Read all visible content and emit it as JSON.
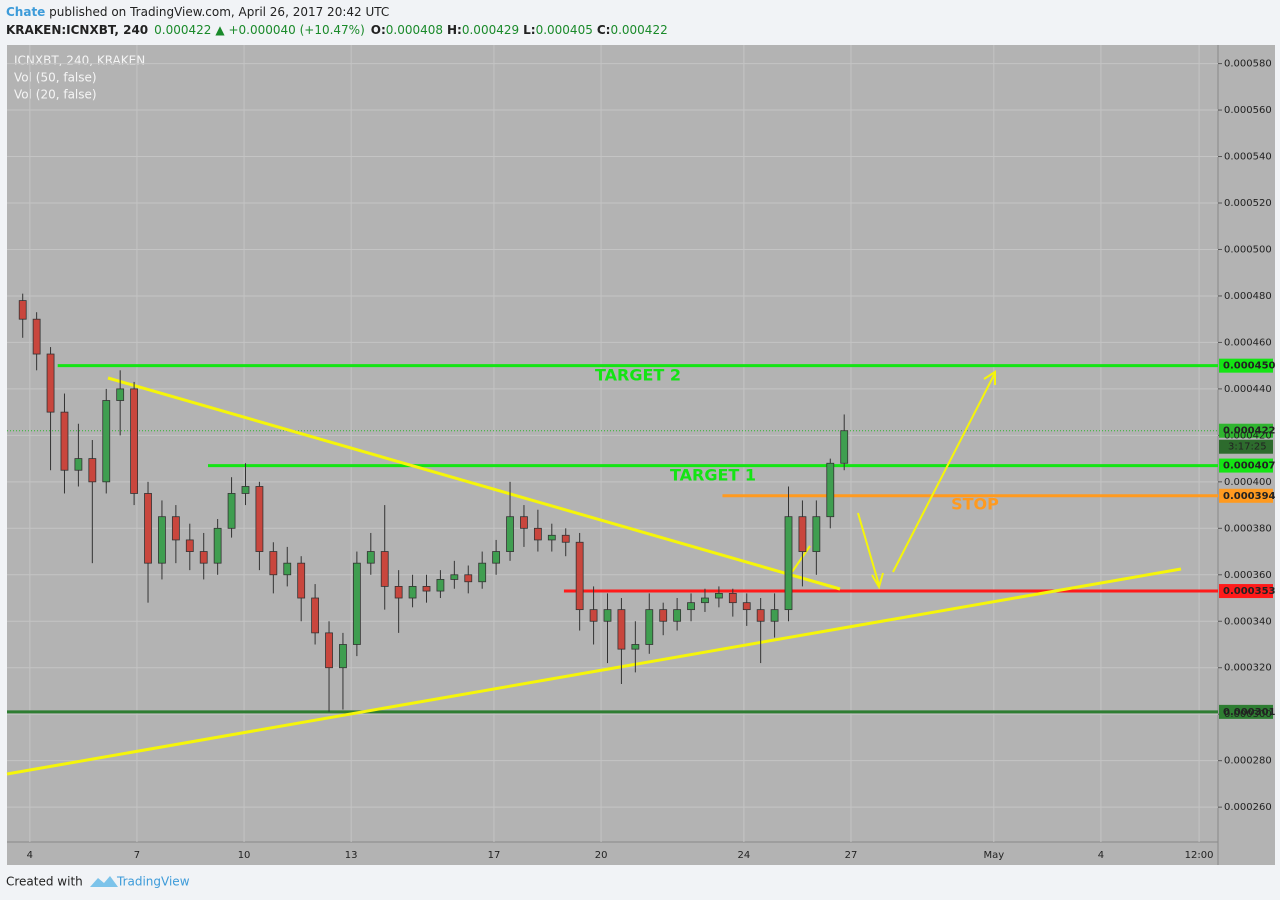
{
  "header": {
    "author": "Chate",
    "published": " published on TradingView.com, April 26, 2017 20:42 UTC",
    "symbol": "KRAKEN:ICNXBT, 240",
    "price": "0.000422",
    "change": "▲ +0.000040 (+10.47%)",
    "o_label": "O:",
    "o": "0.000408",
    "h_label": "H:",
    "h": "0.000429",
    "l_label": "L:",
    "l": "0.000405",
    "c_label": "C:",
    "c": "0.000422"
  },
  "legend": [
    "ICNXBT, 240, KRAKEN",
    "Vol (50, false)",
    "Vol (20, false)"
  ],
  "footer": {
    "created": "Created with",
    "brand": "TradingView"
  },
  "chart_data": {
    "type": "candlestick",
    "up_color": "#3f9e50",
    "down_color": "#c9463d",
    "xlim": [
      3.36,
      37.28
    ],
    "ylim": [
      0.000245,
      0.000588
    ],
    "xticks": [
      4,
      7,
      10,
      13,
      17,
      20,
      24,
      27,
      {
        "value": 31,
        "label": "May"
      },
      {
        "value": 34,
        "label": "4"
      },
      {
        "value": 36.75,
        "label": "12:00"
      }
    ],
    "yticks": [
      {
        "value": 0.00026,
        "label": "0.000260"
      },
      {
        "value": 0.00028,
        "label": "0.000280"
      },
      {
        "value": 0.0003,
        "label": "0.000300"
      },
      {
        "value": 0.00032,
        "label": "0.000320"
      },
      {
        "value": 0.00034,
        "label": "0.000340"
      },
      {
        "value": 0.00036,
        "label": "0.000360"
      },
      {
        "value": 0.00038,
        "label": "0.000380"
      },
      {
        "value": 0.0004,
        "label": "0.000400"
      },
      {
        "value": 0.00042,
        "label": "0.000420"
      },
      {
        "value": 0.00044,
        "label": "0.000440"
      },
      {
        "value": 0.00046,
        "label": "0.000460"
      },
      {
        "value": 0.00048,
        "label": "0.000480"
      },
      {
        "value": 0.0005,
        "label": "0.000500"
      },
      {
        "value": 0.00052,
        "label": "0.000520"
      },
      {
        "value": 0.00054,
        "label": "0.000540"
      },
      {
        "value": 0.00056,
        "label": "0.000560"
      },
      {
        "value": 0.00058,
        "label": "0.000580"
      }
    ],
    "grid": true,
    "x": [
      3.8,
      4.19,
      4.58,
      4.97,
      5.36,
      5.75,
      6.14,
      6.53,
      6.92,
      7.31,
      7.7,
      8.09,
      8.48,
      8.87,
      9.26,
      9.65,
      10.04,
      10.43,
      10.82,
      11.21,
      11.6,
      11.99,
      12.38,
      12.77,
      13.16,
      13.55,
      13.94,
      14.33,
      14.72,
      15.11,
      15.5,
      15.89,
      16.28,
      16.67,
      17.06,
      17.45,
      17.84,
      18.23,
      18.62,
      19.01,
      19.4,
      19.79,
      20.18,
      20.57,
      20.96,
      21.35,
      21.74,
      22.13,
      22.52,
      22.91,
      23.3,
      23.69,
      24.08,
      24.47,
      24.86,
      25.25,
      25.64,
      26.03,
      26.42,
      26.81
    ],
    "open": [
      0.000478,
      0.00047,
      0.000455,
      0.00043,
      0.000405,
      0.00041,
      0.0004,
      0.000435,
      0.00044,
      0.000395,
      0.000365,
      0.000385,
      0.000375,
      0.00037,
      0.000365,
      0.00038,
      0.000395,
      0.000398,
      0.00037,
      0.00036,
      0.000365,
      0.00035,
      0.000335,
      0.00032,
      0.00033,
      0.000365,
      0.00037,
      0.000355,
      0.00035,
      0.000355,
      0.000353,
      0.000358,
      0.00036,
      0.000357,
      0.000365,
      0.00037,
      0.000385,
      0.00038,
      0.000375,
      0.000377,
      0.000374,
      0.000345,
      0.00034,
      0.000345,
      0.000328,
      0.00033,
      0.000345,
      0.00034,
      0.000345,
      0.000348,
      0.00035,
      0.000352,
      0.000348,
      0.000345,
      0.00034,
      0.000345,
      0.000385,
      0.00037,
      0.000385,
      0.000408
    ],
    "high": [
      0.000481,
      0.000473,
      0.000458,
      0.000438,
      0.000425,
      0.000418,
      0.00044,
      0.000448,
      0.000443,
      0.0004,
      0.000392,
      0.00039,
      0.000382,
      0.000378,
      0.000384,
      0.000402,
      0.000408,
      0.0004,
      0.000374,
      0.000372,
      0.000368,
      0.000356,
      0.00034,
      0.000335,
      0.00037,
      0.000378,
      0.00039,
      0.000362,
      0.00036,
      0.00036,
      0.000362,
      0.000366,
      0.000364,
      0.00037,
      0.000375,
      0.0004,
      0.00039,
      0.000388,
      0.000382,
      0.00038,
      0.000378,
      0.000355,
      0.000352,
      0.00035,
      0.00034,
      0.000352,
      0.000348,
      0.00035,
      0.000352,
      0.000354,
      0.000355,
      0.000354,
      0.000352,
      0.00035,
      0.000352,
      0.000398,
      0.000392,
      0.000392,
      0.00041,
      0.000429
    ],
    "low": [
      0.000462,
      0.000448,
      0.000405,
      0.000395,
      0.000398,
      0.000365,
      0.000395,
      0.00042,
      0.00039,
      0.000348,
      0.000358,
      0.000365,
      0.000362,
      0.000358,
      0.00036,
      0.000376,
      0.00039,
      0.000362,
      0.000352,
      0.000355,
      0.00034,
      0.00033,
      0.000301,
      0.000302,
      0.000325,
      0.00036,
      0.000345,
      0.000335,
      0.000346,
      0.000348,
      0.00035,
      0.000354,
      0.000352,
      0.000354,
      0.00036,
      0.000366,
      0.000372,
      0.00037,
      0.00037,
      0.000368,
      0.000336,
      0.00033,
      0.000322,
      0.000313,
      0.000318,
      0.000326,
      0.000334,
      0.000336,
      0.00034,
      0.000344,
      0.000346,
      0.000342,
      0.000338,
      0.000322,
      0.000333,
      0.00034,
      0.000355,
      0.00036,
      0.00038,
      0.000405
    ],
    "close": [
      0.00047,
      0.000455,
      0.00043,
      0.000405,
      0.00041,
      0.0004,
      0.000435,
      0.00044,
      0.000395,
      0.000365,
      0.000385,
      0.000375,
      0.00037,
      0.000365,
      0.00038,
      0.000395,
      0.000398,
      0.00037,
      0.00036,
      0.000365,
      0.00035,
      0.000335,
      0.00032,
      0.00033,
      0.000365,
      0.00037,
      0.000355,
      0.00035,
      0.000355,
      0.000353,
      0.000358,
      0.00036,
      0.000357,
      0.000365,
      0.00037,
      0.000385,
      0.00038,
      0.000375,
      0.000377,
      0.000374,
      0.000345,
      0.00034,
      0.000345,
      0.000328,
      0.00033,
      0.000345,
      0.00034,
      0.000345,
      0.000348,
      0.00035,
      0.000352,
      0.000348,
      0.000345,
      0.00034,
      0.000345,
      0.000385,
      0.00037,
      0.000385,
      0.000408,
      0.000422
    ],
    "levels": [
      {
        "value": 0.00045,
        "label": "0.000450",
        "color": "#14e414",
        "start": 4.78
      },
      {
        "value": 0.000407,
        "label": "0.000407",
        "color": "#14e414",
        "start": 8.99
      },
      {
        "value": 0.000394,
        "label": "0.000394",
        "color": "#ff9a1f",
        "start": 23.4
      },
      {
        "value": 0.000353,
        "label": "0.000353",
        "color": "#ff1a1a",
        "start": 18.96
      },
      {
        "value": 0.000301,
        "label": "0.000301",
        "color": "#2e7d32",
        "start": 3.36
      }
    ],
    "last": {
      "value": 0.000422,
      "label": "0.000422",
      "countdown": "3:17:25",
      "color": "#2fb52f"
    },
    "annotations": [
      "TARGET 2",
      "TARGET 1",
      "STOP"
    ]
  }
}
